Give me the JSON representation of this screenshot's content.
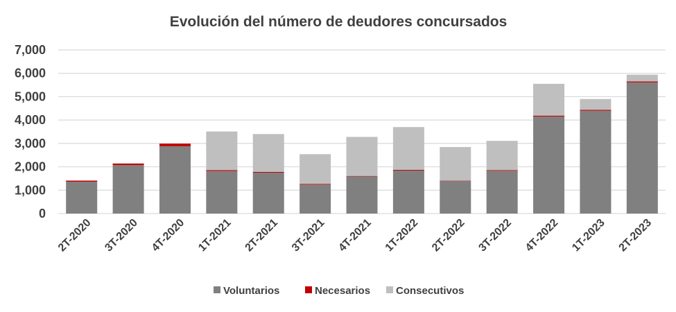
{
  "chart_data": {
    "type": "bar",
    "stacked": true,
    "title": "Evolución del número de deudores concursados",
    "xlabel": "",
    "ylabel": "",
    "ylim": [
      0,
      7000
    ],
    "yticks": [
      "0",
      "1,000",
      "2,000",
      "3,000",
      "4,000",
      "5,000",
      "6,000",
      "7,000"
    ],
    "grid": true,
    "legend_position": "bottom",
    "categories": [
      "2T-2020",
      "3T-2020",
      "4T-2020",
      "1T-2021",
      "2T-2021",
      "3T-2021",
      "4T-2021",
      "1T-2022",
      "2T-2022",
      "3T-2022",
      "4T-2022",
      "1T-2023",
      "2T-2023"
    ],
    "series": [
      {
        "name": "Voluntarios",
        "color": "#808080",
        "values": [
          1360,
          2070,
          2880,
          1820,
          1750,
          1240,
          1590,
          1840,
          1400,
          1830,
          4150,
          4400,
          5610
        ]
      },
      {
        "name": "Necesarios",
        "color": "#C00000",
        "values": [
          50,
          70,
          110,
          40,
          30,
          30,
          20,
          30,
          15,
          30,
          40,
          40,
          40
        ]
      },
      {
        "name": "Consecutivos",
        "color": "#BFBFBF",
        "values": [
          0,
          0,
          0,
          1650,
          1620,
          1270,
          1670,
          1830,
          1430,
          1250,
          1360,
          460,
          290
        ]
      }
    ]
  }
}
